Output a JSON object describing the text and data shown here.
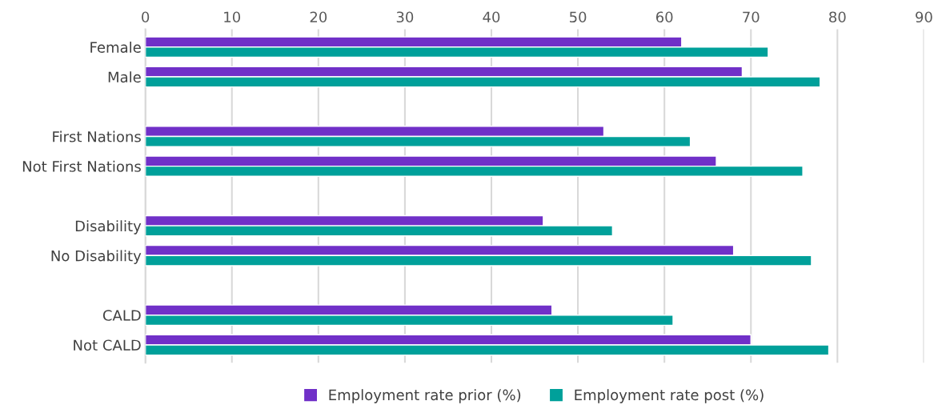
{
  "chart_data": {
    "type": "bar",
    "orientation": "horizontal",
    "categories": [
      "Female",
      "Male",
      null,
      "First Nations",
      "Not First Nations",
      null,
      "Disability",
      "No Disability",
      null,
      "CALD",
      "Not CALD"
    ],
    "series": [
      {
        "name": "Employment rate prior (%)",
        "color": "#7030c8",
        "values": [
          62,
          69,
          null,
          53,
          66,
          null,
          46,
          68,
          null,
          47,
          70
        ]
      },
      {
        "name": "Employment rate post (%)",
        "color": "#00a09a",
        "values": [
          72,
          78,
          null,
          63,
          76,
          null,
          54,
          77,
          null,
          61,
          79
        ]
      }
    ],
    "xlim": [
      0,
      90
    ],
    "xticks": [
      0,
      10,
      20,
      30,
      40,
      50,
      60,
      70,
      80,
      90
    ],
    "grid": "x",
    "legend": "bottom"
  }
}
